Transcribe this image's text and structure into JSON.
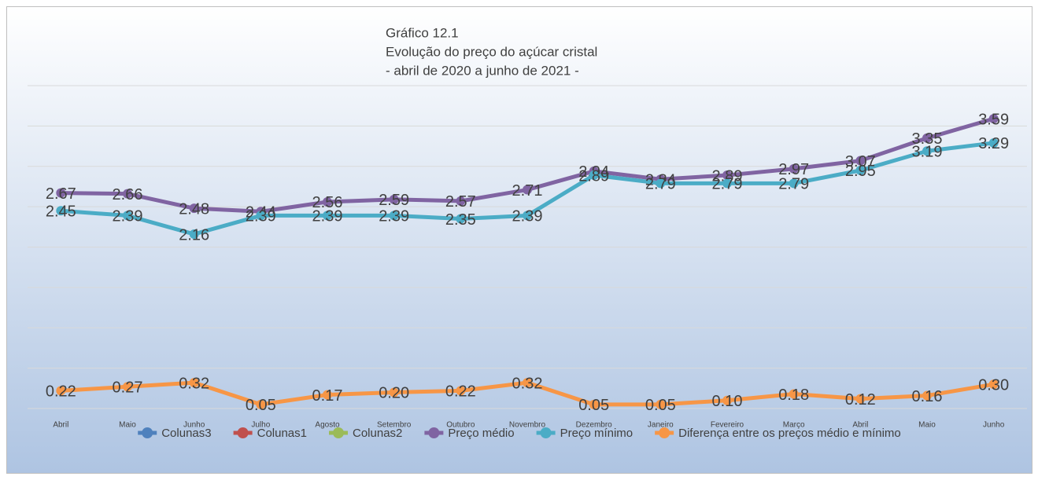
{
  "chart_data": {
    "type": "line",
    "title": [
      "Gráfico 12.1",
      "Evolução do preço do açúcar cristal",
      "- abril de 2020 a junho de 2021 -"
    ],
    "categories": [
      "Abril",
      "Maio",
      "Junho",
      "Julho",
      "Agosto",
      "Setembro",
      "Outubro",
      "Novembro",
      "Dezembro",
      "Janeiro",
      "Fevereiro",
      "Março",
      "Abril",
      "Maio",
      "Junho"
    ],
    "series": [
      {
        "name": "Colunas3",
        "color": "#4f81bd",
        "values": [
          null,
          null,
          null,
          null,
          null,
          null,
          null,
          null,
          null,
          null,
          null,
          null,
          null,
          null,
          null
        ]
      },
      {
        "name": "Colunas1",
        "color": "#c0504d",
        "values": [
          null,
          null,
          null,
          null,
          null,
          null,
          null,
          null,
          null,
          null,
          null,
          null,
          null,
          null,
          null
        ]
      },
      {
        "name": "Colunas2",
        "color": "#9bbb59",
        "values": [
          null,
          null,
          null,
          null,
          null,
          null,
          null,
          null,
          null,
          null,
          null,
          null,
          null,
          null,
          null
        ]
      },
      {
        "name": "Preço médio",
        "color": "#8064a2",
        "values": [
          2.67,
          2.66,
          2.48,
          2.44,
          2.56,
          2.59,
          2.57,
          2.71,
          2.94,
          2.84,
          2.89,
          2.97,
          3.07,
          3.35,
          3.59
        ]
      },
      {
        "name": "Preço mínimo",
        "color": "#4bacc6",
        "values": [
          2.45,
          2.39,
          2.16,
          2.39,
          2.39,
          2.39,
          2.35,
          2.39,
          2.89,
          2.79,
          2.79,
          2.79,
          2.95,
          3.19,
          3.29
        ]
      },
      {
        "name": "Diferença entre os preços médio e mínimo",
        "color": "#f79646",
        "values": [
          0.22,
          0.27,
          0.32,
          0.05,
          0.17,
          0.2,
          0.22,
          0.32,
          0.05,
          0.05,
          0.1,
          0.18,
          0.12,
          0.16,
          0.3
        ],
        "value_labels": [
          "0.22",
          "0.27",
          "0.32",
          "0.05",
          "0.17",
          "0.20",
          "0.22",
          "0.32",
          "0.05",
          "0.05",
          "0.10",
          "0.18",
          "0.12",
          "0.16",
          "0.30"
        ]
      }
    ],
    "ylim": [
      0,
      4
    ],
    "yticks": [
      0,
      0.5,
      1,
      1.5,
      2,
      2.5,
      3,
      3.5,
      4
    ],
    "grid": true,
    "legend": "bottom"
  }
}
